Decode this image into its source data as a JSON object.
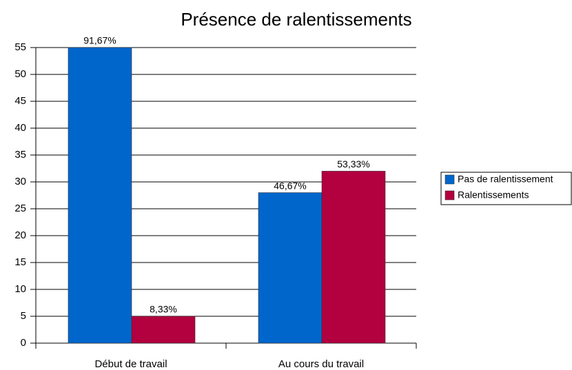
{
  "chart_data": {
    "type": "bar",
    "title": "Présence de ralentissements",
    "categories": [
      "Début de travail",
      "Au cours du travail"
    ],
    "series": [
      {
        "name": "Pas de ralentissement",
        "color": "#0066cc",
        "values": [
          55,
          28
        ],
        "data_labels": [
          "91,67%",
          "46,67%"
        ]
      },
      {
        "name": "Ralentissements",
        "color": "#b3003f",
        "values": [
          5,
          32
        ],
        "data_labels": [
          "8,33%",
          "53,33%"
        ]
      }
    ],
    "ylim": [
      0,
      55
    ],
    "yticks": [
      0,
      5,
      10,
      15,
      20,
      25,
      30,
      35,
      40,
      45,
      50,
      55
    ],
    "grid": true,
    "legend": "right"
  }
}
